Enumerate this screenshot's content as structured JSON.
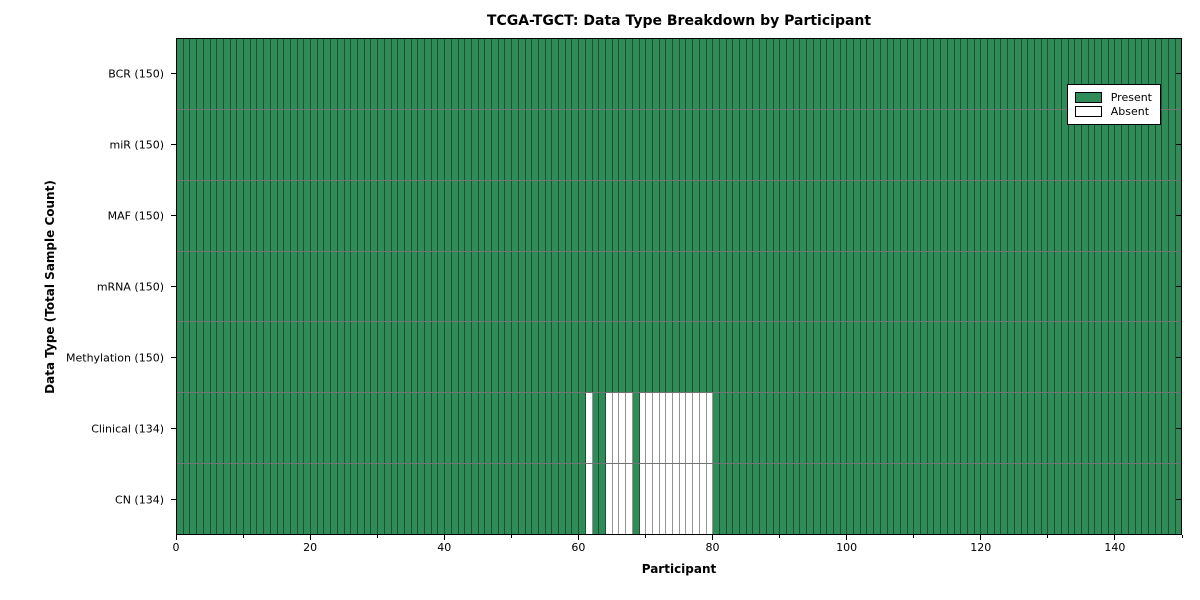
{
  "title": "TCGA-TGCT: Data Type Breakdown by Participant",
  "colors": {
    "present": "#2f8b58",
    "absent": "#ffffff",
    "frame": "#000000",
    "text": "#000000"
  },
  "legend": {
    "position": "upper right",
    "entries": [
      {
        "label": "Present",
        "color": "#2f8b58"
      },
      {
        "label": "Absent",
        "color": "#ffffff"
      }
    ]
  },
  "chart_data": {
    "type": "heatmap",
    "title": "TCGA-TGCT: Data Type Breakdown by Participant",
    "xlabel": "Participant",
    "ylabel": "Data Type (Total Sample Count)",
    "x_range": [
      0,
      150
    ],
    "n_participants": 150,
    "grid": "cell-borders",
    "legend_entries": [
      "Present",
      "Absent"
    ],
    "legend_position": "upper right",
    "x_axis": {
      "major_ticks": [
        0,
        20,
        40,
        60,
        80,
        100,
        120,
        140
      ],
      "major_tick_labels": [
        "0",
        "20",
        "40",
        "60",
        "80",
        "100",
        "120",
        "140"
      ],
      "minor_ticks": [
        10,
        30,
        50,
        70,
        90,
        110,
        130,
        150
      ]
    },
    "rows": [
      {
        "name": "BCR",
        "label": "BCR (150)",
        "total": 150,
        "absent_participants": []
      },
      {
        "name": "miR",
        "label": "miR (150)",
        "total": 150,
        "absent_participants": []
      },
      {
        "name": "MAF",
        "label": "MAF (150)",
        "total": 150,
        "absent_participants": []
      },
      {
        "name": "mRNA",
        "label": "mRNA (150)",
        "total": 150,
        "absent_participants": []
      },
      {
        "name": "Methylation",
        "label": "Methylation (150)",
        "total": 150,
        "absent_participants": []
      },
      {
        "name": "Clinical",
        "label": "Clinical (134)",
        "total": 134,
        "absent_participants": [
          61,
          64,
          65,
          66,
          67,
          69,
          70,
          71,
          72,
          73,
          74,
          75,
          76,
          77,
          78,
          79
        ]
      },
      {
        "name": "CN",
        "label": "CN (134)",
        "total": 134,
        "absent_participants": [
          61,
          64,
          65,
          66,
          67,
          69,
          70,
          71,
          72,
          73,
          74,
          75,
          76,
          77,
          78,
          79
        ]
      }
    ]
  }
}
